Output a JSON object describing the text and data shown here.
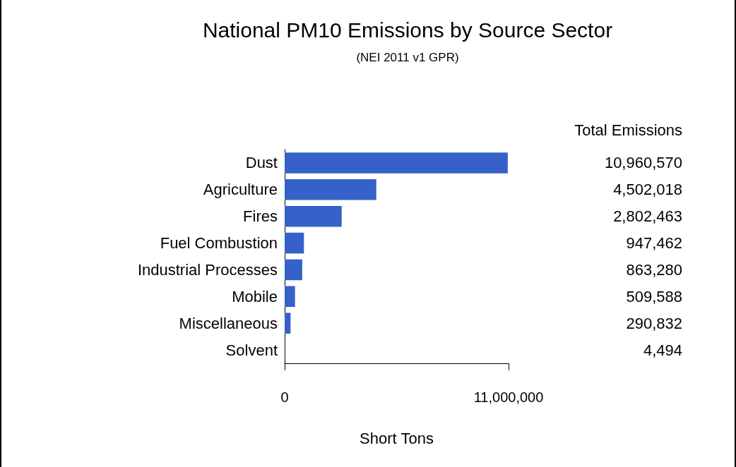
{
  "chart_data": {
    "type": "bar",
    "orientation": "horizontal",
    "title": "National PM10 Emissions by Source Sector",
    "subtitle": "(NEI 2011 v1 GPR)",
    "xlabel": "Short Tons",
    "categories": [
      "Dust",
      "Agriculture",
      "Fires",
      "Fuel Combustion",
      "Industrial Processes",
      "Mobile",
      "Miscellaneous",
      "Solvent"
    ],
    "values": [
      10960570,
      4502018,
      2802463,
      947462,
      863280,
      509588,
      290832,
      4494
    ],
    "value_labels": [
      "10,960,570",
      "4,502,018",
      "2,802,463",
      "947,462",
      "863,280",
      "509,588",
      "290,832",
      "4,494"
    ],
    "color": "#3561c9",
    "xlim": [
      0,
      11000000
    ],
    "xticks": [
      0,
      {
        "value": 11000000,
        "label": "11,000,000"
      }
    ],
    "grid": false,
    "annotations": [
      "Total Emissions"
    ]
  }
}
